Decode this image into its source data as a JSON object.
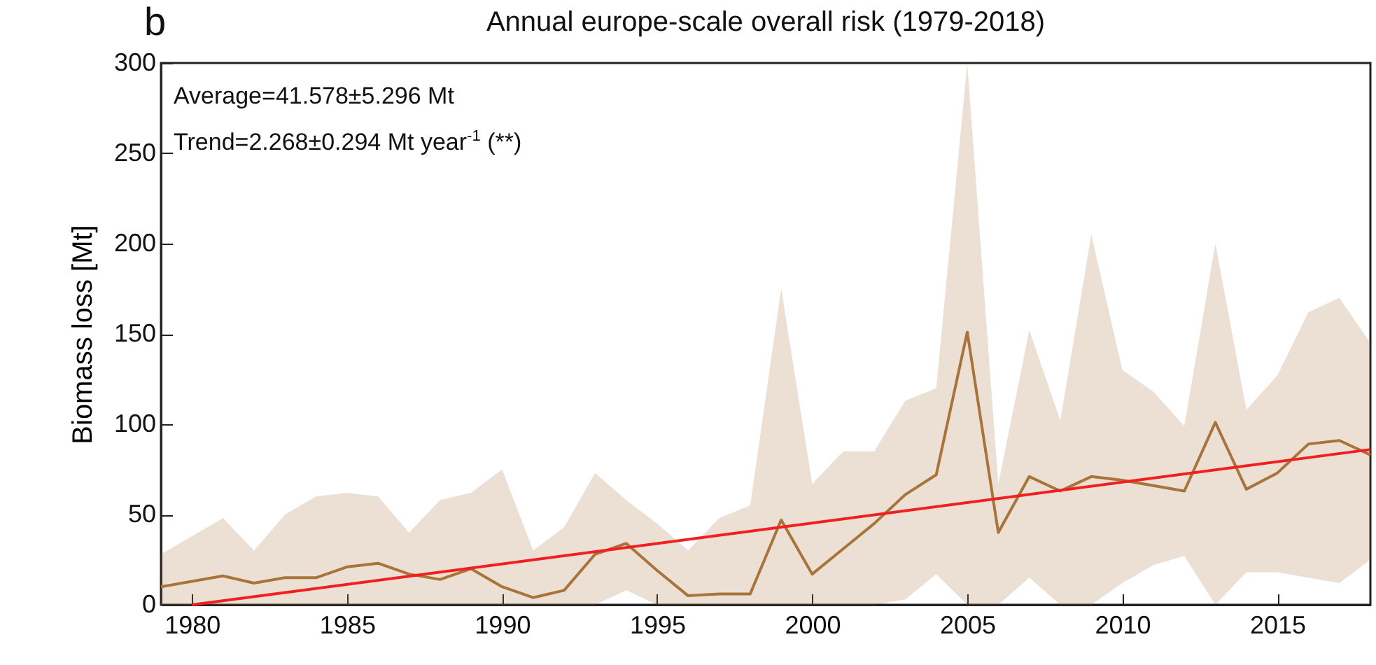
{
  "chart_data": {
    "type": "line",
    "title": "Annual europe-scale overall risk (1979-2018)",
    "ylabel": "Biomass loss [Mt]",
    "annotations": [
      "b",
      "Average=41.578±5.296 Mt",
      "Trend=2.268±0.294 Mt year$^{-1}$ (**)"
    ],
    "x": [
      1979,
      1980,
      1981,
      1982,
      1983,
      1984,
      1985,
      1986,
      1987,
      1988,
      1989,
      1990,
      1991,
      1992,
      1993,
      1994,
      1995,
      1996,
      1997,
      1998,
      1999,
      2000,
      2001,
      2002,
      2003,
      2004,
      2005,
      2006,
      2007,
      2008,
      2009,
      2010,
      2011,
      2012,
      2013,
      2014,
      2015,
      2016,
      2017,
      2018
    ],
    "series": [
      {
        "color": "#a8743a",
        "values": [
          10,
          13,
          16,
          12,
          15,
          15,
          21,
          23,
          17,
          14,
          20,
          10,
          4,
          8,
          28,
          34,
          19,
          5,
          6,
          6,
          47,
          17,
          31,
          45,
          61,
          72,
          151,
          40,
          71,
          63,
          71,
          69,
          66,
          63,
          101,
          64,
          73,
          89,
          91,
          83
        ],
        "lower": [
          0,
          0,
          0,
          0,
          0,
          0,
          0,
          0,
          0,
          0,
          0,
          0,
          0,
          0,
          0,
          8,
          0,
          0,
          0,
          0,
          0,
          0,
          0,
          0,
          3,
          17,
          0,
          0,
          15,
          0,
          0,
          12,
          22,
          27,
          0,
          18,
          18,
          15,
          12,
          25
        ],
        "upper": [
          28,
          38,
          48,
          30,
          50,
          60,
          62,
          60,
          40,
          58,
          62,
          75,
          30,
          43,
          73,
          58,
          45,
          30,
          48,
          55,
          175,
          67,
          85,
          85,
          113,
          120,
          300,
          67,
          152,
          102,
          205,
          130,
          118,
          99,
          200,
          108,
          127,
          162,
          170,
          145
        ]
      },
      {
        "type": "line",
        "color": "#f02020",
        "x": [
          1980,
          2018
        ],
        "values": [
          0,
          86
        ]
      }
    ],
    "xlim": [
      1979,
      2018
    ],
    "xticks": [
      1980,
      1985,
      1990,
      1995,
      2000,
      2005,
      2010,
      2015
    ],
    "ylim": [
      0,
      300
    ],
    "yticks": [
      0,
      50,
      100,
      150,
      200,
      250,
      300
    ]
  }
}
